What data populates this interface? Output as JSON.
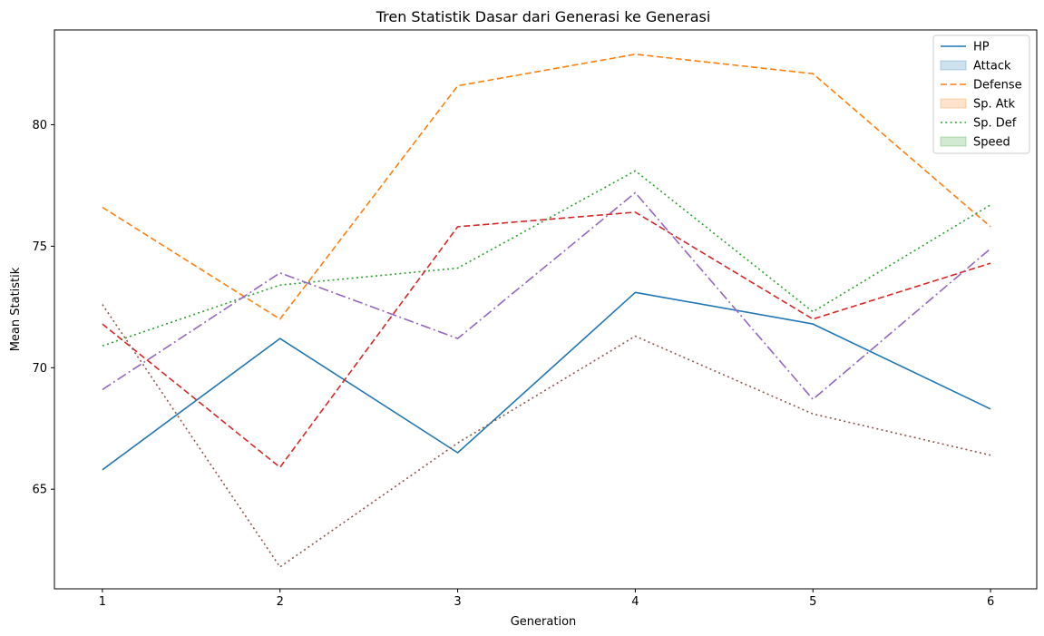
{
  "chart_data": {
    "type": "line",
    "title": "Tren Statistik Dasar dari Generasi ke Generasi",
    "xlabel": "Generation",
    "ylabel": "Mean Statistik",
    "x": [
      1,
      2,
      3,
      4,
      5,
      6
    ],
    "x_ticks": [
      "1",
      "2",
      "3",
      "4",
      "5",
      "6"
    ],
    "y_ticks": [
      "65",
      "70",
      "75",
      "80"
    ],
    "xlim": [
      0.73,
      6.26
    ],
    "ylim": [
      60.9,
      83.9
    ],
    "grid": false,
    "legend_position": "top-right",
    "series": [
      {
        "color": "#1f77b4",
        "dash": "solid",
        "values": [
          65.8,
          71.2,
          66.5,
          73.1,
          71.8,
          68.3
        ]
      },
      {
        "color": "#ff7f0e",
        "dash": "dashed",
        "values": [
          76.6,
          72.0,
          81.6,
          82.9,
          82.1,
          75.8
        ]
      },
      {
        "color": "#2ca02c",
        "dash": "dotted",
        "values": [
          70.9,
          73.4,
          74.1,
          78.1,
          72.3,
          76.7
        ]
      },
      {
        "color": "#d62728",
        "dash": "dashed",
        "values": [
          71.8,
          65.9,
          75.8,
          76.4,
          72.0,
          74.3
        ]
      },
      {
        "color": "#9467bd",
        "dash": "dashdot",
        "values": [
          69.1,
          73.9,
          71.2,
          77.2,
          68.7,
          74.9
        ]
      },
      {
        "color": "#8c564b",
        "dash": "dotted",
        "values": [
          72.6,
          61.8,
          66.9,
          71.3,
          68.1,
          66.4
        ]
      }
    ],
    "legend": [
      {
        "label": "HP",
        "kind": "line",
        "color": "#1f77b4",
        "dash": "solid"
      },
      {
        "label": "Attack",
        "kind": "patch",
        "color": "#1f77b4"
      },
      {
        "label": "Defense",
        "kind": "line",
        "color": "#ff7f0e",
        "dash": "dashed"
      },
      {
        "label": "Sp. Atk",
        "kind": "patch",
        "color": "#ff7f0e"
      },
      {
        "label": "Sp. Def",
        "kind": "line",
        "color": "#2ca02c",
        "dash": "dotted"
      },
      {
        "label": "Speed",
        "kind": "patch",
        "color": "#2ca02c"
      }
    ]
  }
}
